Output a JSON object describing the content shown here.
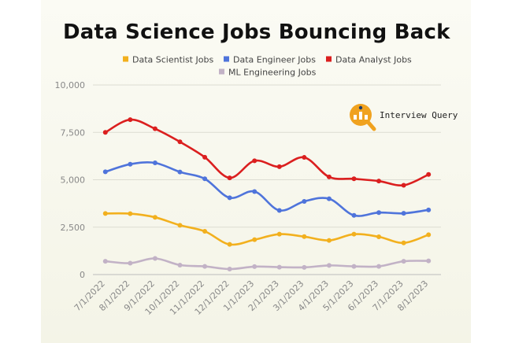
{
  "title": "Data Science Jobs Bouncing Back",
  "brand": {
    "name": "Interview Query",
    "logo_color": "#f0a21f"
  },
  "chart_data": {
    "type": "line",
    "title": "Data Science Jobs Bouncing Back",
    "xlabel": "",
    "ylabel": "",
    "categories": [
      "7/1/2022",
      "8/1/2022",
      "9/1/2022",
      "10/1/2022",
      "11/1/2022",
      "12/1/2022",
      "1/1/2023",
      "2/1/2023",
      "3/1/2023",
      "4/1/2023",
      "5/1/2023",
      "6/1/2023",
      "7/1/2023",
      "8/1/2023"
    ],
    "ylim": [
      0,
      10000
    ],
    "yticks": [
      0,
      2500,
      5000,
      7500,
      10000
    ],
    "ytick_labels": [
      "0",
      "2,500",
      "5,000",
      "7,500",
      "10,000"
    ],
    "grid": true,
    "legend_position": "top",
    "series": [
      {
        "name": "Data Scientist Jobs",
        "color": "#f2b01e",
        "values": [
          3220,
          3210,
          3020,
          2600,
          2280,
          1590,
          1840,
          2130,
          2000,
          1800,
          2130,
          1990,
          1670,
          2100
        ]
      },
      {
        "name": "Data Engineer Jobs",
        "color": "#4f74db",
        "values": [
          5420,
          5820,
          5890,
          5410,
          5050,
          4050,
          4380,
          3380,
          3860,
          4000,
          3120,
          3270,
          3230,
          3410
        ]
      },
      {
        "name": "Data Analyst Jobs",
        "color": "#db1f1f",
        "values": [
          7500,
          8170,
          7690,
          7000,
          6190,
          5100,
          6000,
          5690,
          6180,
          5150,
          5050,
          4930,
          4710,
          5280
        ]
      },
      {
        "name": "ML Engineering Jobs",
        "color": "#c2b2c6",
        "values": [
          700,
          600,
          850,
          500,
          430,
          290,
          420,
          390,
          380,
          480,
          430,
          430,
          700,
          720
        ]
      }
    ]
  }
}
